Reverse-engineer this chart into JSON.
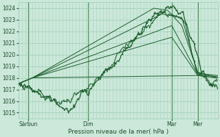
{
  "title": "Pression niveau de la mer( hPa )",
  "ylim": [
    1014.5,
    1024.5
  ],
  "yticks": [
    1015,
    1016,
    1017,
    1018,
    1019,
    1020,
    1021,
    1022,
    1023,
    1024
  ],
  "xtick_labels": [
    "Sàrbun",
    "Dim",
    "Mar",
    "Mer"
  ],
  "xtick_positions": [
    0.05,
    0.35,
    0.77,
    0.9
  ],
  "bg_color": "#cce8da",
  "grid_color": "#99ccb3",
  "line_color": "#1a5c2a",
  "text_color": "#1a4a28",
  "fig_width": 3.2,
  "fig_height": 2.0,
  "dpi": 100
}
